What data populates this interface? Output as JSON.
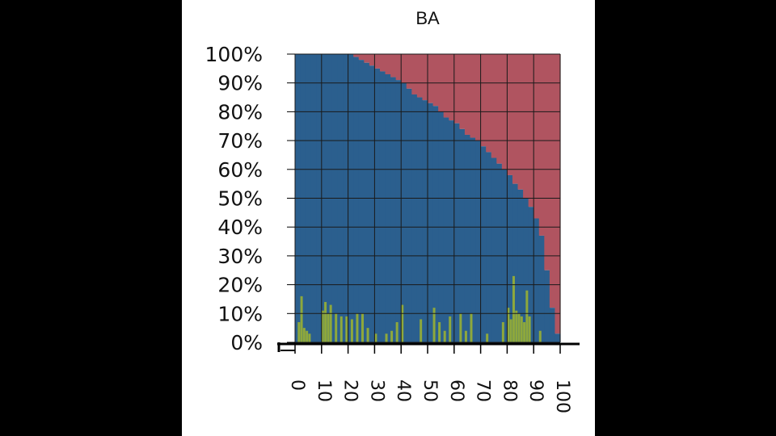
{
  "chart_data": {
    "type": "bar",
    "title": "BA",
    "xlabel": "",
    "ylabel": "",
    "x_ticks": [
      "0",
      "10",
      "20",
      "30",
      "40",
      "50",
      "60",
      "70",
      "80",
      "90",
      "100"
    ],
    "y_ticks": [
      "0%",
      "10%",
      "20%",
      "30%",
      "40%",
      "50%",
      "60%",
      "70%",
      "80%",
      "90%",
      "100%"
    ],
    "xlim": [
      0,
      100
    ],
    "ylim": [
      0,
      100
    ],
    "grid": true,
    "stacked": true,
    "colors": {
      "blue": "#2b5f8e",
      "red": "#b05460",
      "green": "#8ea83c",
      "grid": "#1a1a1a"
    },
    "series_blue_100pct_stacked": {
      "x": [
        0,
        2,
        4,
        6,
        8,
        10,
        12,
        14,
        16,
        18,
        20,
        22,
        24,
        26,
        28,
        30,
        32,
        34,
        36,
        38,
        40,
        42,
        44,
        46,
        48,
        50,
        52,
        54,
        56,
        58,
        60,
        62,
        64,
        66,
        68,
        70,
        72,
        74,
        76,
        78,
        80,
        82,
        84,
        86,
        88,
        90,
        92,
        94,
        96,
        98
      ],
      "values": [
        100,
        100,
        100,
        100,
        100,
        100,
        100,
        100,
        100,
        100,
        100,
        99,
        98,
        97,
        96,
        95,
        94,
        93,
        92,
        91,
        90,
        88,
        86,
        85,
        84,
        83,
        82,
        80,
        78,
        77,
        76,
        74,
        72,
        71,
        70,
        68,
        66,
        64,
        62,
        60,
        58,
        55,
        53,
        50,
        47,
        43,
        37,
        25,
        12,
        3
      ]
    },
    "series_green": {
      "x": [
        1,
        2,
        3,
        4,
        5,
        10,
        11,
        12,
        13,
        15,
        17,
        19,
        21,
        23,
        25,
        27,
        30,
        34,
        36,
        38,
        40,
        47,
        52,
        54,
        56,
        58,
        62,
        64,
        66,
        72,
        78,
        80,
        81,
        82,
        83,
        84,
        85,
        86,
        87,
        88,
        92
      ],
      "values": [
        7,
        16,
        5,
        4,
        3,
        11,
        14,
        10,
        13,
        10,
        9,
        9,
        8,
        10,
        10,
        5,
        3,
        3,
        4,
        7,
        13,
        8,
        12,
        7,
        4,
        9,
        10,
        4,
        10,
        3,
        7,
        12,
        8,
        23,
        11,
        10,
        9,
        7,
        18,
        9,
        4
      ]
    }
  }
}
